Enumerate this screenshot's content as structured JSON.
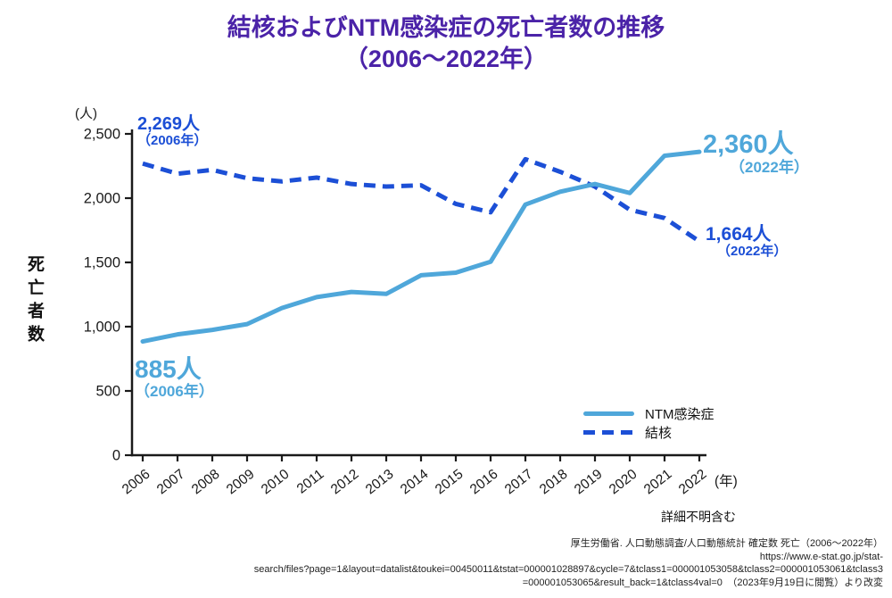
{
  "title": {
    "line1": "結核およびNTM感染症の死亡者数の推移",
    "line2": "（2006～2022年）"
  },
  "colors": {
    "title_purple": "#4B23A8",
    "tb_blue": "#1C4FD6",
    "ntm_blue": "#4FA7DA",
    "axis": "#1A1A1A"
  },
  "y_axis": {
    "unit": "(人)",
    "label": "死亡者数",
    "tick_labels": [
      "0",
      "500",
      "1,000",
      "1,500",
      "2,000",
      "2,500"
    ]
  },
  "x_axis": {
    "unit": "(年)"
  },
  "legend": {
    "items": [
      {
        "label": "NTM感染症",
        "style": "solid"
      },
      {
        "label": "結核",
        "style": "dashed"
      }
    ]
  },
  "annotations": {
    "tb_start": {
      "value": "2,269人",
      "year": "（2006年）"
    },
    "ntm_start": {
      "value": "885人",
      "year": "（2006年）"
    },
    "ntm_end": {
      "value": "2,360人",
      "year": "（2022年）"
    },
    "tb_end": {
      "value": "1,664人",
      "year": "（2022年）"
    }
  },
  "footnote": "詳細不明含む",
  "source": {
    "line1": "厚生労働省. 人口動態調査/人口動態統計 確定数 死亡（2006～2022年）",
    "line2": "https://www.e-stat.go.jp/stat-",
    "line3": "search/files?page=1&layout=datalist&toukei=00450011&tstat=000001028897&cycle=7&tclass1=000001053058&tclass2=000001053061&tclass3",
    "line4": "=000001053065&result_back=1&tclass4val=0　（2023年9月19日に閲覧）より改変"
  },
  "chart_data": {
    "type": "line",
    "title": "結核およびNTM感染症の死亡者数の推移（2006～2022年）",
    "x": [
      2006,
      2007,
      2008,
      2009,
      2010,
      2011,
      2012,
      2013,
      2014,
      2015,
      2016,
      2017,
      2018,
      2019,
      2020,
      2021,
      2022
    ],
    "series": [
      {
        "name": "NTM感染症",
        "color": "#4FA7DA",
        "line_style": "solid",
        "values": [
          885,
          940,
          975,
          1020,
          1145,
          1230,
          1270,
          1255,
          1400,
          1420,
          1505,
          1950,
          2050,
          2110,
          2040,
          2330,
          2360
        ]
      },
      {
        "name": "結核",
        "color": "#1C4FD6",
        "line_style": "dashed",
        "values": [
          2269,
          2190,
          2220,
          2155,
          2130,
          2160,
          2110,
          2090,
          2100,
          1955,
          1890,
          2303,
          2205,
          2090,
          1910,
          1845,
          1664
        ]
      }
    ],
    "ylabel": "死亡者数",
    "xlabel": "年",
    "y_unit": "人",
    "ylim": [
      0,
      2500
    ],
    "yticks": [
      0,
      500,
      1000,
      1500,
      2000,
      2500
    ],
    "grid": false,
    "legend_position": "inside-bottom-right",
    "annotations": [
      {
        "series": "結核",
        "x": 2006,
        "value": 2269,
        "label": "2,269人（2006年）"
      },
      {
        "series": "NTM感染症",
        "x": 2006,
        "value": 885,
        "label": "885人（2006年）"
      },
      {
        "series": "NTM感染症",
        "x": 2022,
        "value": 2360,
        "label": "2,360人（2022年）"
      },
      {
        "series": "結核",
        "x": 2022,
        "value": 1664,
        "label": "1,664人（2022年）"
      }
    ]
  }
}
